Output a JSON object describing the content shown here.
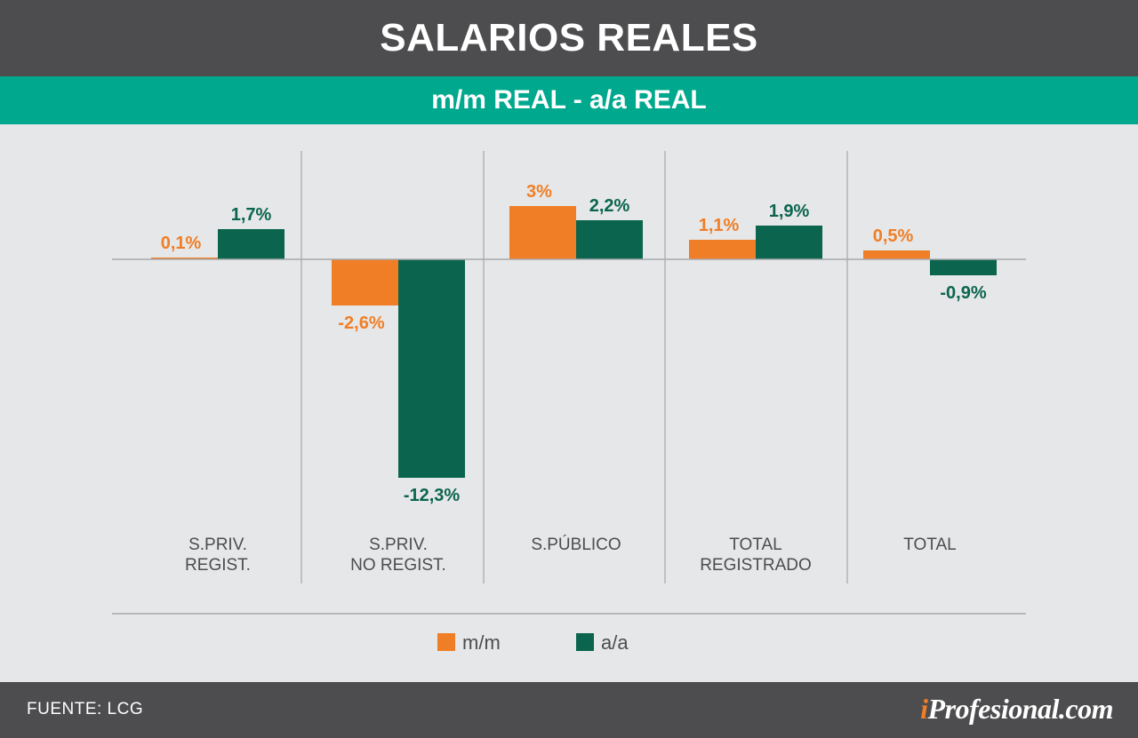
{
  "header": {
    "title": "SALARIOS REALES",
    "subtitle": "m/m REAL - a/a REAL"
  },
  "footer": {
    "source": "FUENTE: LCG",
    "brand_prefix": "i",
    "brand_rest": "Profesional.com"
  },
  "colors": {
    "mm": "#f07e26",
    "aa": "#0b654e",
    "brand_accent": "#00a88e",
    "header_bg": "#4d4d4f"
  },
  "chart_data": {
    "type": "bar",
    "title": "SALARIOS REALES",
    "subtitle": "m/m REAL - a/a REAL",
    "categories": [
      [
        "S.PRIV.",
        "REGIST."
      ],
      [
        "S.PRIV.",
        "NO REGIST."
      ],
      [
        "S.PÚBLICO"
      ],
      [
        "TOTAL",
        "REGISTRADO"
      ],
      [
        "TOTAL"
      ]
    ],
    "series": [
      {
        "name": "m/m",
        "values": [
          0.1,
          -2.6,
          3.0,
          1.1,
          0.5
        ],
        "labels": [
          "0,1%",
          "-2,6%",
          "3%",
          "1,1%",
          "0,5%"
        ],
        "color": "#f07e26"
      },
      {
        "name": "a/a",
        "values": [
          1.7,
          -12.3,
          2.2,
          1.9,
          -0.9
        ],
        "labels": [
          "1,7%",
          "-12,3%",
          "2,2%",
          "1,9%",
          "-0,9%"
        ],
        "color": "#0b654e"
      }
    ],
    "xlabel": "",
    "ylabel": "",
    "legend_position": "bottom-center",
    "grid": false
  }
}
